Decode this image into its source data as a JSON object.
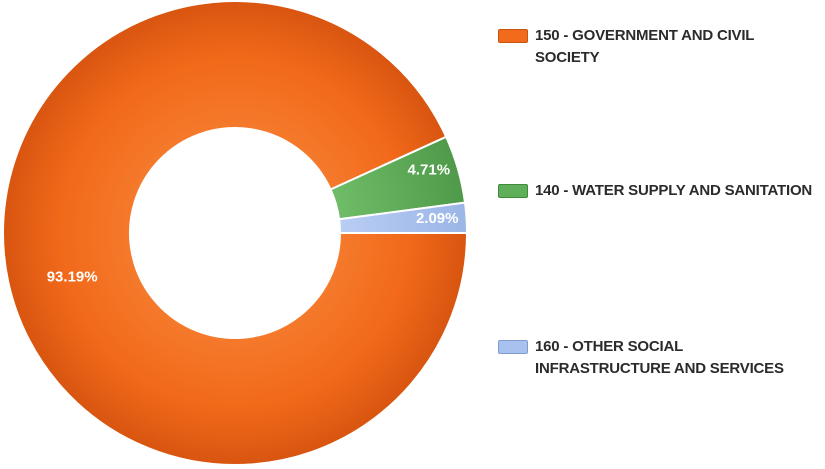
{
  "chart_data": {
    "type": "pie",
    "donut": true,
    "categories": [
      "150 - GOVERNMENT AND CIVIL SOCIETY",
      "140 - WATER SUPPLY AND SANITATION",
      "160 - OTHER SOCIAL INFRASTRUCTURE AND SERVICES"
    ],
    "values": [
      93.19,
      4.71,
      2.09
    ],
    "data_labels": [
      "93.19%",
      "4.71%",
      "2.09%"
    ],
    "colors": [
      "#f26a1b",
      "#5fae5a",
      "#a9c1ee"
    ],
    "legend_position": "right",
    "title": ""
  }
}
